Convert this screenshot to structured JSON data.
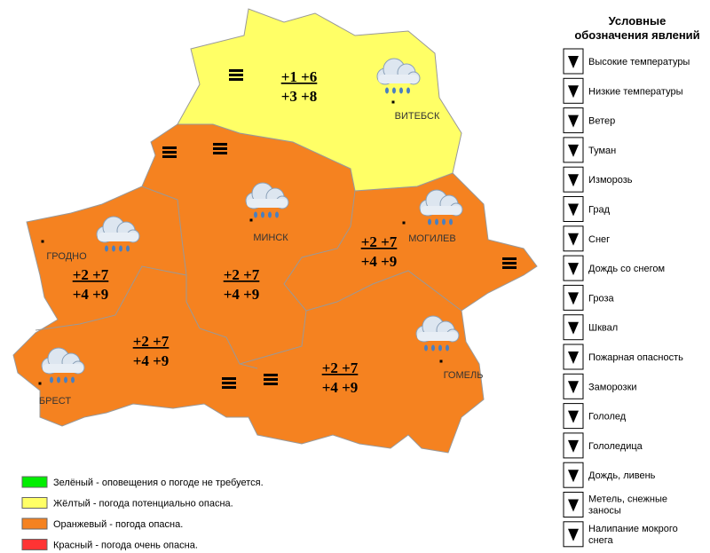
{
  "regions": [
    {
      "name": "ВИТЕБСК",
      "temps": [
        "+1 +6",
        "+3 +8"
      ]
    },
    {
      "name": "ГРОДНО",
      "temps": [
        "+2 +7",
        "+4 +9"
      ]
    },
    {
      "name": "МИНСК",
      "temps": [
        "+2 +7",
        "+4 +9"
      ]
    },
    {
      "name": "МОГИЛЕВ",
      "temps": [
        "+2 +7",
        "+4 +9"
      ]
    },
    {
      "name": "БРЕСТ",
      "temps": [
        "+2 +7",
        "+4 +9"
      ]
    },
    {
      "name": "ГОМЕЛЬ",
      "temps": [
        "+2 +7",
        "+4 +9"
      ]
    }
  ],
  "levels": [
    {
      "color": "#00ee00",
      "text": "Зелёный - оповещения о погоде не требуется."
    },
    {
      "color": "#ffff66",
      "text": "Жёлтый - погода потенциально опасна."
    },
    {
      "color": "#f58220",
      "text": "Оранжевый - погода опасна."
    },
    {
      "color": "#ff3333",
      "text": "Красный - погода очень опасна."
    }
  ],
  "legend": {
    "title": [
      "Условные",
      "обозначения явлений"
    ],
    "items": [
      "Высокие температуры",
      "Низкие температуры",
      "Ветер",
      "Туман",
      "Изморозь",
      "Град",
      "Снег",
      "Дождь со снегом",
      "Гроза",
      "Шквал",
      "Пожарная опасность",
      "Заморозки",
      "Гололед",
      "Гололедица",
      "Дождь, ливень",
      "Метель, снежные заносы",
      "Налипание мокрого снега"
    ]
  }
}
